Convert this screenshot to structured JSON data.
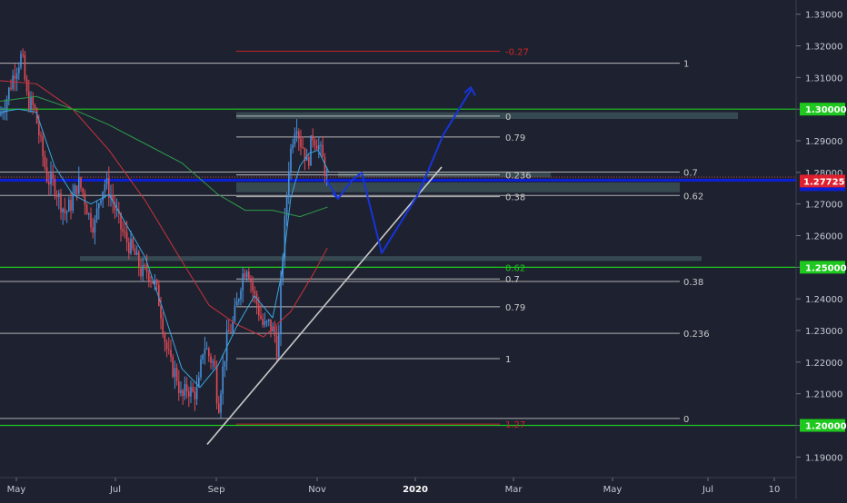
{
  "chart_data": {
    "type": "line",
    "symbol": "",
    "price_axis": {
      "ticks": [
        "1.33000",
        "1.32000",
        "1.31000",
        "1.30000",
        "1.29000",
        "1.28000",
        "1.27000",
        "1.26000",
        "1.25000",
        "1.24000",
        "1.23000",
        "1.22000",
        "1.21000",
        "1.20000",
        "1.19000"
      ],
      "ylim": [
        1.1835,
        1.3345
      ],
      "current_price": "1.27725",
      "highlighted": [
        "1.30000",
        "1.25000",
        "1.20000"
      ]
    },
    "time_axis": {
      "labels": [
        "May",
        "Jul",
        "Sep",
        "Nov",
        "2020",
        "Mar",
        "May",
        "Jul",
        "10"
      ],
      "bold": [
        "2020"
      ]
    },
    "horizontal_levels": [
      {
        "price": 1.3,
        "color": "#1ec81e"
      },
      {
        "price": 1.25,
        "color": "#1ec81e"
      },
      {
        "price": 1.2,
        "color": "#1ec81e"
      },
      {
        "price": 1.2775,
        "color": "#0b1fd6"
      }
    ],
    "fib_upper": {
      "levels": [
        {
          "label": "-0.27",
          "price": 1.3183,
          "color": "#d02424"
        },
        {
          "label": "1",
          "price": 1.3145,
          "color": "#c8c8c8"
        },
        {
          "label": "0",
          "price": 1.2978,
          "color": "#c8c8c8"
        },
        {
          "label": "0.79",
          "price": 1.2912,
          "color": "#c8c8c8"
        },
        {
          "label": "0.236",
          "price": 1.2792,
          "color": "#c8c8c8"
        },
        {
          "label": "0.38",
          "price": 1.2723,
          "color": "#c8c8c8"
        },
        {
          "label": "0.62",
          "price": 1.25,
          "color": "#1ec81e"
        },
        {
          "label": "0.7",
          "price": 1.2463,
          "color": "#c8c8c8"
        },
        {
          "label": "0.79",
          "price": 1.2375,
          "color": "#c8c8c8"
        },
        {
          "label": "1",
          "price": 1.2211,
          "color": "#c8c8c8"
        },
        {
          "label": "1.27",
          "price": 1.2004,
          "color": "#d02424"
        }
      ]
    },
    "fib_lower": {
      "levels": [
        {
          "label": "0.7",
          "price": 1.2801
        },
        {
          "label": "0.62",
          "price": 1.2727
        },
        {
          "label": "0.38",
          "price": 1.2455
        },
        {
          "label": "0.236",
          "price": 1.2291
        },
        {
          "label": "0",
          "price": 1.2022
        }
      ]
    },
    "zones": [
      {
        "from": 1.2969,
        "to": 1.299
      },
      {
        "from": 1.2784,
        "to": 1.2799
      },
      {
        "from": 1.2737,
        "to": 1.2768
      },
      {
        "from": 1.252,
        "to": 1.2535
      }
    ],
    "price_series": [
      {
        "t": 0,
        "p": 1.298
      },
      {
        "t": 8,
        "p": 1.304
      },
      {
        "t": 16,
        "p": 1.312
      },
      {
        "t": 24,
        "p": 1.317
      },
      {
        "t": 30,
        "p": 1.303
      },
      {
        "t": 38,
        "p": 1.3
      },
      {
        "t": 46,
        "p": 1.287
      },
      {
        "t": 52,
        "p": 1.278
      },
      {
        "t": 60,
        "p": 1.276
      },
      {
        "t": 66,
        "p": 1.271
      },
      {
        "t": 72,
        "p": 1.267
      },
      {
        "t": 78,
        "p": 1.27
      },
      {
        "t": 86,
        "p": 1.277
      },
      {
        "t": 92,
        "p": 1.273
      },
      {
        "t": 98,
        "p": 1.266
      },
      {
        "t": 104,
        "p": 1.263
      },
      {
        "t": 110,
        "p": 1.273
      },
      {
        "t": 116,
        "p": 1.277
      },
      {
        "t": 124,
        "p": 1.271
      },
      {
        "t": 132,
        "p": 1.263
      },
      {
        "t": 140,
        "p": 1.258
      },
      {
        "t": 148,
        "p": 1.254
      },
      {
        "t": 156,
        "p": 1.248
      },
      {
        "t": 162,
        "p": 1.249
      },
      {
        "t": 170,
        "p": 1.245
      },
      {
        "t": 176,
        "p": 1.238
      },
      {
        "t": 182,
        "p": 1.226
      },
      {
        "t": 188,
        "p": 1.219
      },
      {
        "t": 194,
        "p": 1.216
      },
      {
        "t": 200,
        "p": 1.208
      },
      {
        "t": 206,
        "p": 1.212
      },
      {
        "t": 212,
        "p": 1.21
      },
      {
        "t": 218,
        "p": 1.211
      },
      {
        "t": 224,
        "p": 1.226
      },
      {
        "t": 230,
        "p": 1.222
      },
      {
        "t": 236,
        "p": 1.219
      },
      {
        "t": 240,
        "p": 1.205
      },
      {
        "t": 244,
        "p": 1.215
      },
      {
        "t": 250,
        "p": 1.228
      },
      {
        "t": 256,
        "p": 1.232
      },
      {
        "t": 262,
        "p": 1.24
      },
      {
        "t": 266,
        "p": 1.247
      },
      {
        "t": 272,
        "p": 1.251
      },
      {
        "t": 278,
        "p": 1.243
      },
      {
        "t": 284,
        "p": 1.237
      },
      {
        "t": 290,
        "p": 1.231
      },
      {
        "t": 296,
        "p": 1.232
      },
      {
        "t": 302,
        "p": 1.229
      },
      {
        "t": 306,
        "p": 1.222
      },
      {
        "t": 310,
        "p": 1.25
      },
      {
        "t": 314,
        "p": 1.266
      },
      {
        "t": 318,
        "p": 1.283
      },
      {
        "t": 322,
        "p": 1.291
      },
      {
        "t": 326,
        "p": 1.297
      },
      {
        "t": 330,
        "p": 1.29
      },
      {
        "t": 334,
        "p": 1.288
      },
      {
        "t": 338,
        "p": 1.282
      },
      {
        "t": 344,
        "p": 1.292
      },
      {
        "t": 350,
        "p": 1.289
      },
      {
        "t": 356,
        "p": 1.283
      },
      {
        "t": 360,
        "p": 1.2773
      }
    ],
    "ema_blue": [
      {
        "t": 0,
        "p": 1.299
      },
      {
        "t": 20,
        "p": 1.3
      },
      {
        "t": 40,
        "p": 1.299
      },
      {
        "t": 60,
        "p": 1.282
      },
      {
        "t": 80,
        "p": 1.273
      },
      {
        "t": 100,
        "p": 1.27
      },
      {
        "t": 120,
        "p": 1.273
      },
      {
        "t": 140,
        "p": 1.263
      },
      {
        "t": 160,
        "p": 1.253
      },
      {
        "t": 180,
        "p": 1.236
      },
      {
        "t": 200,
        "p": 1.218
      },
      {
        "t": 220,
        "p": 1.212
      },
      {
        "t": 240,
        "p": 1.219
      },
      {
        "t": 260,
        "p": 1.231
      },
      {
        "t": 280,
        "p": 1.241
      },
      {
        "t": 300,
        "p": 1.234
      },
      {
        "t": 310,
        "p": 1.248
      },
      {
        "t": 320,
        "p": 1.272
      },
      {
        "t": 330,
        "p": 1.282
      },
      {
        "t": 340,
        "p": 1.286
      },
      {
        "t": 350,
        "p": 1.287
      },
      {
        "t": 362,
        "p": 1.28
      }
    ],
    "sma_green": [
      {
        "t": 0,
        "p": 1.3025
      },
      {
        "t": 40,
        "p": 1.304
      },
      {
        "t": 80,
        "p": 1.3
      },
      {
        "t": 120,
        "p": 1.295
      },
      {
        "t": 160,
        "p": 1.289
      },
      {
        "t": 200,
        "p": 1.283
      },
      {
        "t": 240,
        "p": 1.273
      },
      {
        "t": 270,
        "p": 1.268
      },
      {
        "t": 300,
        "p": 1.268
      },
      {
        "t": 330,
        "p": 1.266
      },
      {
        "t": 360,
        "p": 1.269
      }
    ],
    "sma_red": [
      {
        "t": 0,
        "p": 1.309
      },
      {
        "t": 40,
        "p": 1.308
      },
      {
        "t": 80,
        "p": 1.3
      },
      {
        "t": 120,
        "p": 1.287
      },
      {
        "t": 160,
        "p": 1.271
      },
      {
        "t": 200,
        "p": 1.252
      },
      {
        "t": 230,
        "p": 1.238
      },
      {
        "t": 260,
        "p": 1.232
      },
      {
        "t": 290,
        "p": 1.228
      },
      {
        "t": 320,
        "p": 1.236
      },
      {
        "t": 345,
        "p": 1.248
      },
      {
        "t": 360,
        "p": 1.256
      }
    ],
    "trendline": [
      {
        "t": 228,
        "p": 1.194
      },
      {
        "t": 486,
        "p": 1.2817
      }
    ],
    "projection_path": [
      {
        "t": 360,
        "p": 1.2773
      },
      {
        "t": 372,
        "p": 1.2717
      },
      {
        "t": 388,
        "p": 1.2777
      },
      {
        "t": 398,
        "p": 1.2799
      },
      {
        "t": 420,
        "p": 1.2545
      },
      {
        "t": 460,
        "p": 1.273
      },
      {
        "t": 488,
        "p": 1.292
      },
      {
        "t": 518,
        "p": 1.306
      }
    ],
    "colors": {
      "background": "#1e2230",
      "candle_up": "#4a8fd9",
      "candle_down": "#e04b57",
      "level_green": "#1ec81e",
      "level_blue": "#0b1fd6",
      "price_tag": "#e01f2f",
      "projection": "#1635d8",
      "trendline": "#c8c8c8"
    }
  }
}
